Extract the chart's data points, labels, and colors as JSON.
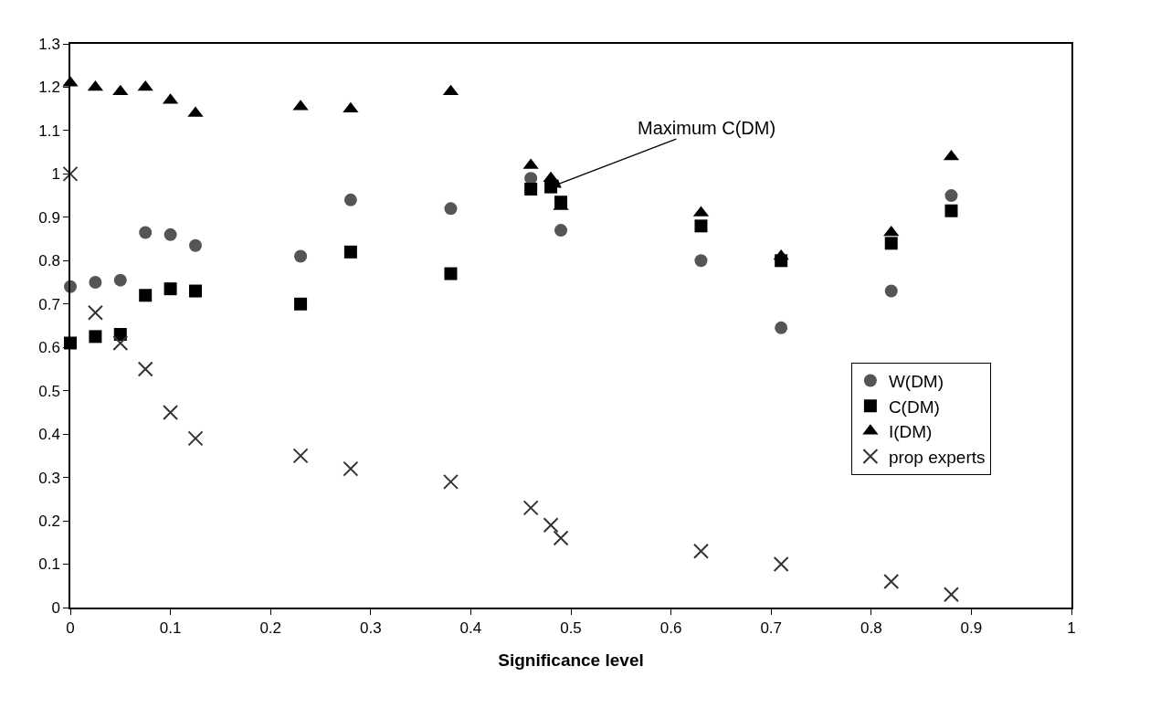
{
  "chart_data": {
    "type": "scatter",
    "xlabel": "Significance level",
    "x": [
      0,
      0.025,
      0.05,
      0.075,
      0.1,
      0.125,
      0.23,
      0.28,
      0.38,
      0.46,
      0.48,
      0.49,
      0.63,
      0.71,
      0.82,
      0.88
    ],
    "series": [
      {
        "name": "W(DM)",
        "color": "#555555",
        "marker": "circle",
        "values": [
          0.74,
          0.75,
          0.755,
          0.865,
          0.86,
          0.835,
          0.81,
          0.94,
          0.92,
          0.99,
          null,
          0.87,
          0.8,
          0.645,
          0.73,
          0.95
        ]
      },
      {
        "name": "C(DM)",
        "color": "#000000",
        "marker": "square",
        "values": [
          0.61,
          0.625,
          0.63,
          0.72,
          0.735,
          0.73,
          0.7,
          0.82,
          0.77,
          0.965,
          0.97,
          0.935,
          0.88,
          0.8,
          0.84,
          0.915
        ]
      },
      {
        "name": "I(DM)",
        "color": "#000000",
        "marker": "triangle",
        "values": [
          1.21,
          1.2,
          1.19,
          1.2,
          1.17,
          1.14,
          1.155,
          1.15,
          1.19,
          1.02,
          0.99,
          0.925,
          0.91,
          0.81,
          0.865,
          1.04
        ]
      },
      {
        "name": "prop experts",
        "color": "#333333",
        "marker": "cross",
        "values": [
          1.0,
          0.68,
          0.61,
          0.55,
          0.45,
          0.39,
          0.35,
          0.32,
          0.29,
          0.23,
          0.19,
          0.16,
          0.13,
          0.1,
          0.06,
          0.03
        ]
      }
    ],
    "annotations": [
      {
        "text": "Maximum C(DM)",
        "x": 0.48,
        "y": 0.97
      }
    ],
    "xlim": [
      0,
      1
    ],
    "xticks": [
      0,
      0.1,
      0.2,
      0.3,
      0.4,
      0.5,
      0.6,
      0.7,
      0.8,
      0.9,
      1
    ],
    "ylim": [
      0,
      1.3
    ],
    "yticks": [
      0,
      0.1,
      0.2,
      0.3,
      0.4,
      0.5,
      0.6,
      0.7,
      0.8,
      0.9,
      1,
      1.1,
      1.2,
      1.3
    ],
    "grid": false,
    "legend": "right"
  }
}
